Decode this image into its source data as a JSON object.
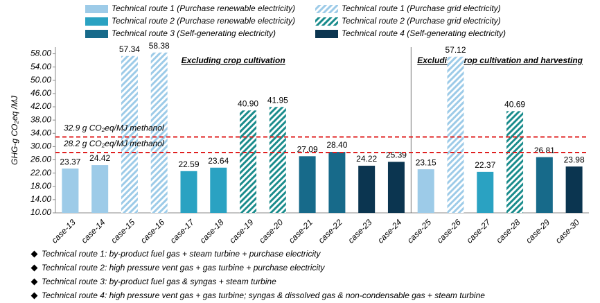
{
  "chart_data": {
    "type": "bar",
    "y_label": "GHG-g CO₂eq /MJ",
    "categories": [
      "case-13",
      "case-14",
      "case-15",
      "case-16",
      "case-17",
      "case-18",
      "case-19",
      "case-20",
      "case-21",
      "case-22",
      "case-23",
      "case-24",
      "case-25",
      "case-26",
      "case-27",
      "case-28",
      "case-29",
      "case-30"
    ],
    "series": [
      {
        "name": "Technical route 1 (Purchase renewable electricity)",
        "color": "#9dcbe8",
        "hatch": false,
        "values": [
          23.37,
          24.42,
          null,
          null,
          null,
          null,
          null,
          null,
          null,
          null,
          null,
          null,
          23.15,
          null,
          null,
          null,
          null,
          null
        ],
        "value_labels": [
          "23.37",
          "24.42",
          null,
          null,
          null,
          null,
          null,
          null,
          null,
          null,
          null,
          null,
          "23.15",
          null,
          null,
          null,
          null,
          null
        ]
      },
      {
        "name": "Technical route 1 (Purchase grid electricity)",
        "color": "#9dcbe8",
        "hatch": true,
        "values": [
          null,
          null,
          57.34,
          58.38,
          null,
          null,
          null,
          null,
          null,
          null,
          null,
          null,
          null,
          57.12,
          null,
          null,
          null,
          null
        ],
        "value_labels": [
          null,
          null,
          "57.34",
          "58.38",
          null,
          null,
          null,
          null,
          null,
          null,
          null,
          null,
          null,
          "57.12",
          null,
          null,
          null,
          null
        ]
      },
      {
        "name": "Technical route 2 (Purchase renewable electricity)",
        "color": "#2aa2c2",
        "hatch": false,
        "values": [
          null,
          null,
          null,
          null,
          22.59,
          23.64,
          null,
          null,
          null,
          null,
          null,
          null,
          null,
          null,
          22.37,
          null,
          null,
          null
        ],
        "value_labels": [
          null,
          null,
          null,
          null,
          "22.59",
          "23.64",
          null,
          null,
          null,
          null,
          null,
          null,
          null,
          null,
          "22.37",
          null,
          null,
          null
        ]
      },
      {
        "name": "Technical route 2 (Purchase grid electricity)",
        "color": "#1a8c8c",
        "hatch": true,
        "values": [
          null,
          null,
          null,
          null,
          null,
          null,
          40.9,
          41.95,
          null,
          null,
          null,
          null,
          null,
          null,
          null,
          40.69,
          null,
          null
        ],
        "value_labels": [
          null,
          null,
          null,
          null,
          null,
          null,
          "40.90",
          "41.95",
          null,
          null,
          null,
          null,
          null,
          null,
          null,
          "40.69",
          null,
          null
        ]
      },
      {
        "name": "Technical route 3 (Self-generating electricity)",
        "color": "#176a8a",
        "hatch": false,
        "values": [
          null,
          null,
          null,
          null,
          null,
          null,
          null,
          null,
          27.09,
          28.4,
          null,
          null,
          null,
          null,
          null,
          null,
          26.81,
          null
        ],
        "value_labels": [
          null,
          null,
          null,
          null,
          null,
          null,
          null,
          null,
          "27.09",
          "28.40",
          null,
          null,
          null,
          null,
          null,
          null,
          "26.81",
          null
        ]
      },
      {
        "name": "Technical route 4 (Self-generating electricity)",
        "color": "#0b3550",
        "hatch": false,
        "values": [
          null,
          null,
          null,
          null,
          null,
          null,
          null,
          null,
          null,
          null,
          24.22,
          25.39,
          null,
          null,
          null,
          null,
          null,
          23.98
        ],
        "value_labels": [
          null,
          null,
          null,
          null,
          null,
          null,
          null,
          null,
          null,
          null,
          "24.22",
          "25.39",
          null,
          null,
          null,
          null,
          null,
          "23.98"
        ]
      }
    ],
    "ylim": [
      10,
      60
    ],
    "yticks": [
      {
        "value": 10,
        "label": "10.00"
      },
      {
        "value": 14,
        "label": "14.00"
      },
      {
        "value": 18,
        "label": "18.00"
      },
      {
        "value": 22,
        "label": "22.00"
      },
      {
        "value": 26,
        "label": "26.00"
      },
      {
        "value": 30,
        "label": "30.00"
      },
      {
        "value": 34,
        "label": "34.00"
      },
      {
        "value": 38,
        "label": "38.00"
      },
      {
        "value": 42,
        "label": "42.00"
      },
      {
        "value": 46,
        "label": "46.00"
      },
      {
        "value": 50,
        "label": "50.00"
      },
      {
        "value": 54,
        "label": "54.00"
      },
      {
        "value": 58,
        "label": "58.00"
      }
    ],
    "grid": false,
    "reference_lines": [
      {
        "value": 32.9,
        "label": "32.9 g CO₂eq/MJ methanol",
        "color": "#e02020"
      },
      {
        "value": 28.2,
        "label": "28.2 g CO₂eq/MJ methanol",
        "color": "#e02020"
      }
    ],
    "sections": [
      {
        "label": "Excluding crop cultivation",
        "from": 0,
        "to": 11
      },
      {
        "label": "Excluding crop cultivation and harvesting",
        "from": 12,
        "to": 17
      }
    ],
    "notes": [
      "Technical route 1: by-product fuel gas + steam turbine + purchase electricity",
      "Technical route 2: high pressure vent gas + gas turbine + purchase electricity",
      "Technical route 3: by-product fuel gas & syngas + steam turbine",
      "Technical route 4: high pressure vent gas + gas turbine; syngas & dissolved gas & non-condensable gas + steam turbine"
    ]
  }
}
